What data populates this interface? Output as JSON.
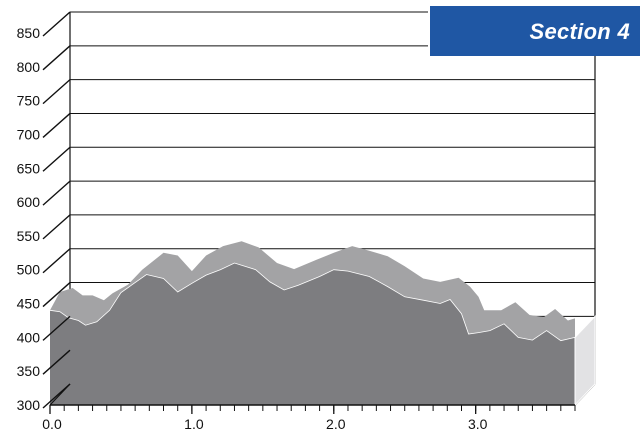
{
  "badge": {
    "label": "Section 4"
  },
  "colors": {
    "back_series": "#a3a3a5",
    "front_series": "#7d7d80",
    "badge": "#1f57a4",
    "grid": "#111111"
  },
  "chart_data": {
    "type": "area",
    "depth_3d": true,
    "grid": true,
    "xlim": [
      0.0,
      3.7
    ],
    "ylim": [
      300,
      850
    ],
    "x_ticks": [
      0.0,
      1.0,
      2.0,
      3.0
    ],
    "x_tick_labels": [
      "0.0",
      "1.0",
      "2.0",
      "3.0"
    ],
    "y_ticks": [
      300,
      350,
      400,
      450,
      500,
      550,
      600,
      650,
      700,
      750,
      800,
      850
    ],
    "y_tick_labels": [
      "300",
      "350",
      "400",
      "450",
      "500",
      "550",
      "600",
      "650",
      "700",
      "750",
      "800",
      "850"
    ],
    "series": [
      {
        "x": [
          0.0,
          0.07,
          0.16,
          0.23,
          0.3,
          0.38,
          0.44,
          0.55,
          0.65,
          0.8,
          0.9,
          1.0,
          1.1,
          1.22,
          1.35,
          1.47,
          1.6,
          1.72,
          1.88,
          2.0,
          2.13,
          2.25,
          2.38,
          2.5,
          2.63,
          2.75,
          2.88,
          2.96,
          3.02,
          3.06,
          3.18,
          3.28,
          3.38,
          3.48,
          3.56,
          3.65,
          3.7
        ],
        "y": [
          440,
          467,
          473,
          462,
          462,
          455,
          465,
          478,
          500,
          525,
          521,
          498,
          521,
          535,
          542,
          533,
          510,
          501,
          515,
          525,
          535,
          528,
          520,
          505,
          487,
          482,
          488,
          475,
          460,
          440,
          440,
          452,
          433,
          430,
          442,
          425,
          428
        ]
      },
      {
        "x": [
          0.0,
          0.07,
          0.13,
          0.2,
          0.25,
          0.33,
          0.42,
          0.5,
          0.58,
          0.68,
          0.8,
          0.9,
          1.0,
          1.1,
          1.2,
          1.3,
          1.45,
          1.55,
          1.65,
          1.75,
          1.9,
          2.0,
          2.1,
          2.25,
          2.38,
          2.5,
          2.63,
          2.75,
          2.82,
          2.9,
          2.95,
          3.02,
          3.1,
          3.2,
          3.3,
          3.4,
          3.5,
          3.6,
          3.7
        ],
        "y": [
          440,
          438,
          429,
          425,
          418,
          423,
          440,
          466,
          478,
          493,
          487,
          467,
          480,
          492,
          500,
          510,
          500,
          482,
          470,
          477,
          490,
          500,
          498,
          490,
          475,
          460,
          455,
          450,
          456,
          435,
          405,
          407,
          410,
          420,
          400,
          396,
          410,
          395,
          400
        ]
      }
    ]
  }
}
